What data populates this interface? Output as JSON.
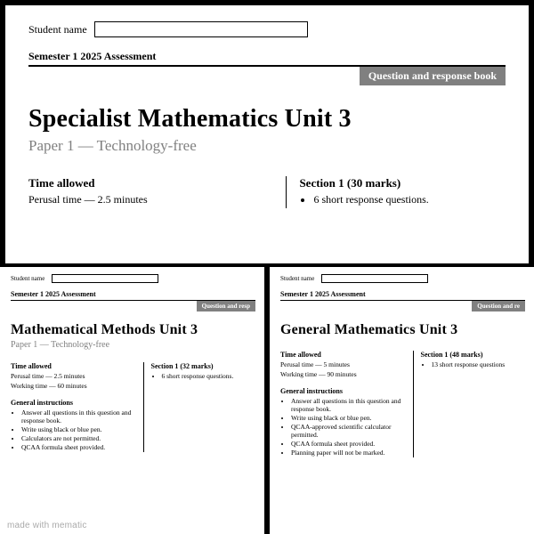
{
  "top": {
    "name_label": "Student name",
    "semester": "Semester 1 2025 Assessment",
    "badge": "Question and response book",
    "title": "Specialist Mathematics Unit 3",
    "subtitle": "Paper 1 — Technology-free",
    "time_h": "Time allowed",
    "perusal": "Perusal time — 2.5 minutes",
    "section_h": "Section 1 (30 marks)",
    "section_item": "6 short response questions."
  },
  "bl": {
    "name_label": "Student name",
    "semester": "Semester 1 2025 Assessment",
    "badge": "Question and resp",
    "title": "Mathematical Methods Unit 3",
    "subtitle": "Paper 1 — Technology-free",
    "time_h": "Time allowed",
    "perusal": "Perusal time — 2.5 minutes",
    "working": "Working time — 60 minutes",
    "section_h": "Section 1 (32 marks)",
    "section_item": "6 short response questions.",
    "gi_h": "General instructions",
    "gi1": "Answer all questions in this question and response book.",
    "gi2": "Write using black or blue pen.",
    "gi3": "Calculators are not permitted.",
    "gi4": "QCAA formula sheet provided."
  },
  "br": {
    "name_label": "Student name",
    "semester": "Semester 1 2025 Assessment",
    "badge": "Question and re",
    "title": "General Mathematics Unit 3",
    "time_h": "Time allowed",
    "perusal": "Perusal time — 5 minutes",
    "working": "Working time — 90 minutes",
    "section_h": "Section 1 (48 marks)",
    "section_item": "13 short response questions",
    "gi_h": "General instructions",
    "gi1": "Answer all questions in this question and response book.",
    "gi2": "Write using black or blue pen.",
    "gi3": "QCAA-approved scientific calculator permitted.",
    "gi4": "QCAA formula sheet provided.",
    "gi5": "Planning paper will not be marked."
  },
  "watermark": "made with mematic"
}
